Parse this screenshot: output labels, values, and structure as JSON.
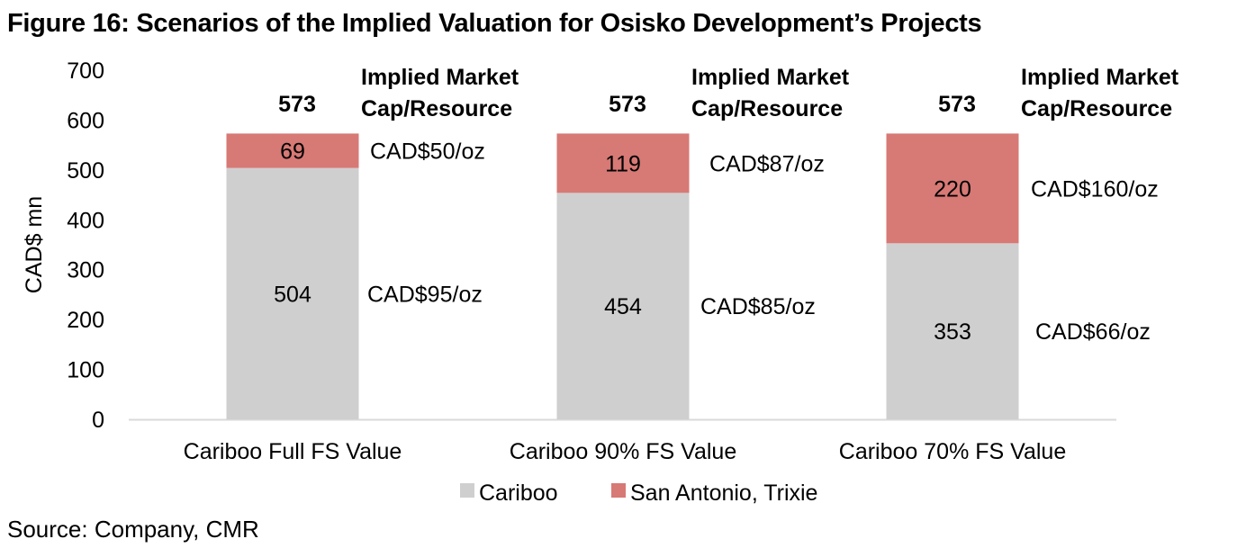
{
  "title": "Figure 16: Scenarios of the Implied Valuation for Osisko Development’s Projects",
  "source": "Source: Company, CMR",
  "colors": {
    "cariboo": "#d0cfd0",
    "san_antonio_trixie": "#d77975",
    "axis": "#d9d9d9"
  },
  "chart_data": {
    "type": "bar",
    "stacked": true,
    "title": "Figure 16: Scenarios of the Implied Valuation for Osisko Development’s Projects",
    "xlabel": "",
    "ylabel": "CAD$ mn",
    "ylim": [
      0,
      700
    ],
    "yticks": [
      0,
      100,
      200,
      300,
      400,
      500,
      600,
      700
    ],
    "grid": false,
    "categories": [
      "Cariboo Full FS Value",
      "Cariboo 90% FS Value",
      "Cariboo 70% FS Value"
    ],
    "series": [
      {
        "name": "Cariboo",
        "values": [
          504,
          454,
          353
        ],
        "annotations": [
          "CAD$95/oz",
          "CAD$85/oz",
          "CAD$66/oz"
        ]
      },
      {
        "name": "San Antonio, Trixie",
        "values": [
          69,
          119,
          220
        ],
        "annotations": [
          "CAD$50/oz",
          "CAD$87/oz",
          "CAD$160/oz"
        ]
      }
    ],
    "totals": [
      573,
      573,
      573
    ],
    "total_header": "Implied Market Cap/Resource",
    "total_header_lines": [
      "Implied Market",
      "Cap/Resource"
    ],
    "legend": [
      "Cariboo",
      "San Antonio, Trixie"
    ],
    "legend_position": "bottom"
  }
}
